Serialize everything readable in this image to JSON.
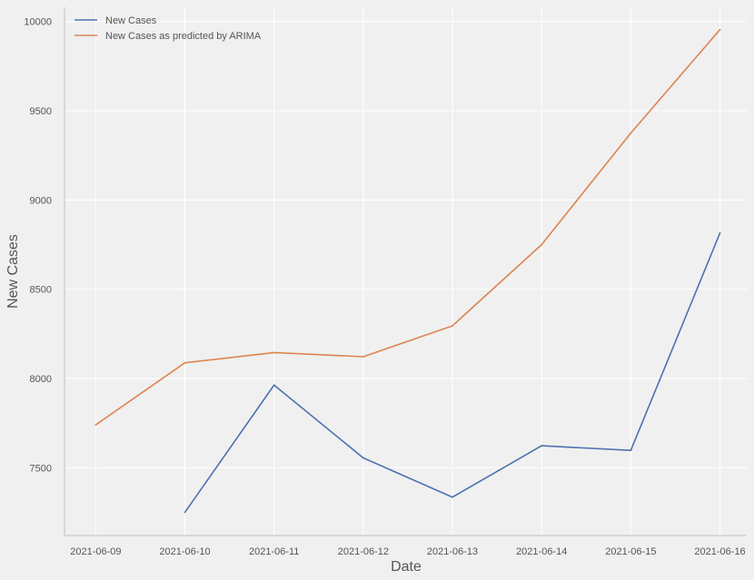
{
  "chart_data": {
    "type": "line",
    "xlabel": "Date",
    "ylabel": "New Cases",
    "x": [
      "2021-06-09",
      "2021-06-10",
      "2021-06-11",
      "2021-06-12",
      "2021-06-13",
      "2021-06-14",
      "2021-06-15",
      "2021-06-16"
    ],
    "yticks": [
      7500,
      8000,
      8500,
      9000,
      9500,
      10000
    ],
    "ylim": [
      7120,
      10080
    ],
    "xlim": [
      -0.35,
      7.3
    ],
    "grid": true,
    "legend": "top-left",
    "series": [
      {
        "name": "New Cases",
        "color": "#4c72b0",
        "values": [
          null,
          7250,
          7963,
          7555,
          7335,
          7623,
          7597,
          8815
        ]
      },
      {
        "name": "New Cases as predicted by ARIMA",
        "color": "#dd8452",
        "values": [
          7740,
          8088,
          8145,
          8122,
          8295,
          8750,
          9375,
          9955
        ]
      }
    ]
  }
}
